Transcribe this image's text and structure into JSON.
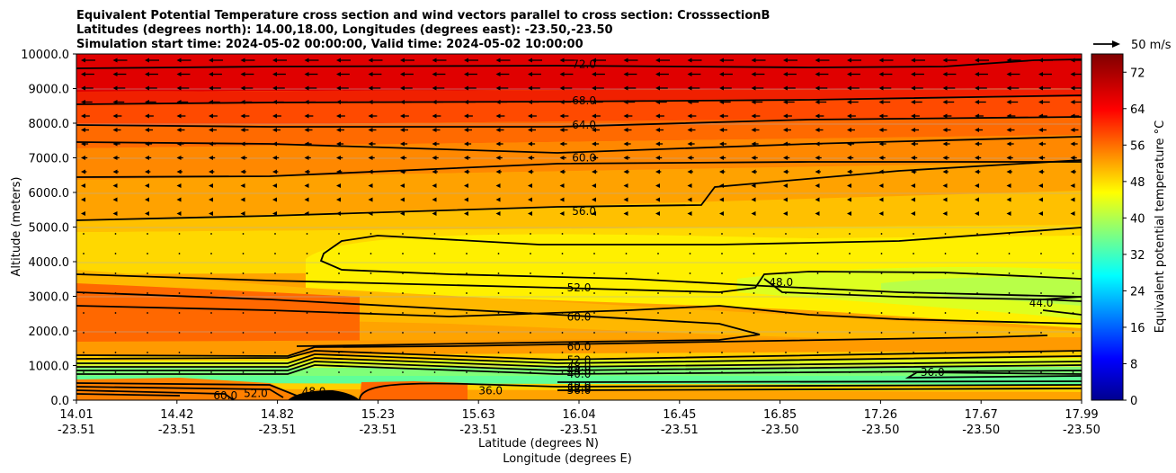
{
  "chart_data": {
    "type": "contourf",
    "title_lines": [
      "Equivalent Potential Temperature cross section and wind vectors parallel to cross section: CrosssectionB",
      "Latitudes (degrees north): 14.00,18.00, Longitudes (degrees east): -23.50,-23.50",
      "Simulation start time: 2024-05-02 00:00:00, Valid time: 2024-05-02 10:00:00"
    ],
    "ylabel": "Altitude (meters)",
    "xlabel_lat": "Latitude (degrees N)",
    "xlabel_lon": "Longitude (degrees E)",
    "ylim": [
      0,
      10000
    ],
    "yticks": [
      "0.0",
      "1000.0",
      "2000.0",
      "3000.0",
      "4000.0",
      "5000.0",
      "6000.0",
      "7000.0",
      "8000.0",
      "9000.0",
      "10000.0"
    ],
    "xticks": [
      {
        "lat": "14.01",
        "lon": "-23.51"
      },
      {
        "lat": "14.42",
        "lon": "-23.51"
      },
      {
        "lat": "14.82",
        "lon": "-23.51"
      },
      {
        "lat": "15.23",
        "lon": "-23.51"
      },
      {
        "lat": "15.63",
        "lon": "-23.51"
      },
      {
        "lat": "16.04",
        "lon": "-23.51"
      },
      {
        "lat": "16.45",
        "lon": "-23.51"
      },
      {
        "lat": "16.85",
        "lon": "-23.50"
      },
      {
        "lat": "17.26",
        "lon": "-23.50"
      },
      {
        "lat": "17.67",
        "lon": "-23.50"
      },
      {
        "lat": "17.99",
        "lon": "-23.50"
      }
    ],
    "colorbar": {
      "label": "Equivalent potential temperature $^\\circ$C",
      "label_text": "Equivalent potential temperature °C",
      "range": [
        0,
        76
      ],
      "ticks": [
        "0",
        "8",
        "16",
        "24",
        "32",
        "40",
        "48",
        "56",
        "64",
        "72"
      ]
    },
    "quiver_key": "50 m/s",
    "contour_labels": [
      {
        "text": "72.0",
        "lat": 16.02,
        "alt": 9700
      },
      {
        "text": "68.0",
        "lat": 16.02,
        "alt": 8650
      },
      {
        "text": "64.0",
        "lat": 16.02,
        "alt": 7950
      },
      {
        "text": "60.0",
        "lat": 16.02,
        "alt": 7000
      },
      {
        "text": "56.0",
        "lat": 16.02,
        "alt": 5450
      },
      {
        "text": "52.0",
        "lat": 16.0,
        "alt": 3250
      },
      {
        "text": "48.0",
        "lat": 16.8,
        "alt": 3400
      },
      {
        "text": "44.0",
        "lat": 17.83,
        "alt": 2800
      },
      {
        "text": "60.0",
        "lat": 16.0,
        "alt": 2400
      },
      {
        "text": "60.0",
        "lat": 16.0,
        "alt": 1550
      },
      {
        "text": "52.0",
        "lat": 16.0,
        "alt": 1150
      },
      {
        "text": "48.0",
        "lat": 16.0,
        "alt": 980
      },
      {
        "text": "44.0",
        "lat": 16.0,
        "alt": 860
      },
      {
        "text": "40.0",
        "lat": 16.0,
        "alt": 750
      },
      {
        "text": "36.0",
        "lat": 17.4,
        "alt": 800
      },
      {
        "text": "40.0",
        "lat": 16.0,
        "alt": 420
      },
      {
        "text": "52.0",
        "lat": 16.0,
        "alt": 340
      },
      {
        "text": "56.0",
        "lat": 16.0,
        "alt": 280
      },
      {
        "text": "48.0",
        "lat": 14.95,
        "alt": 250
      },
      {
        "text": "52.0",
        "lat": 14.72,
        "alt": 190
      },
      {
        "text": "60.0",
        "lat": 14.6,
        "alt": 130
      },
      {
        "text": "36.0",
        "lat": 15.65,
        "alt": 270
      }
    ]
  }
}
